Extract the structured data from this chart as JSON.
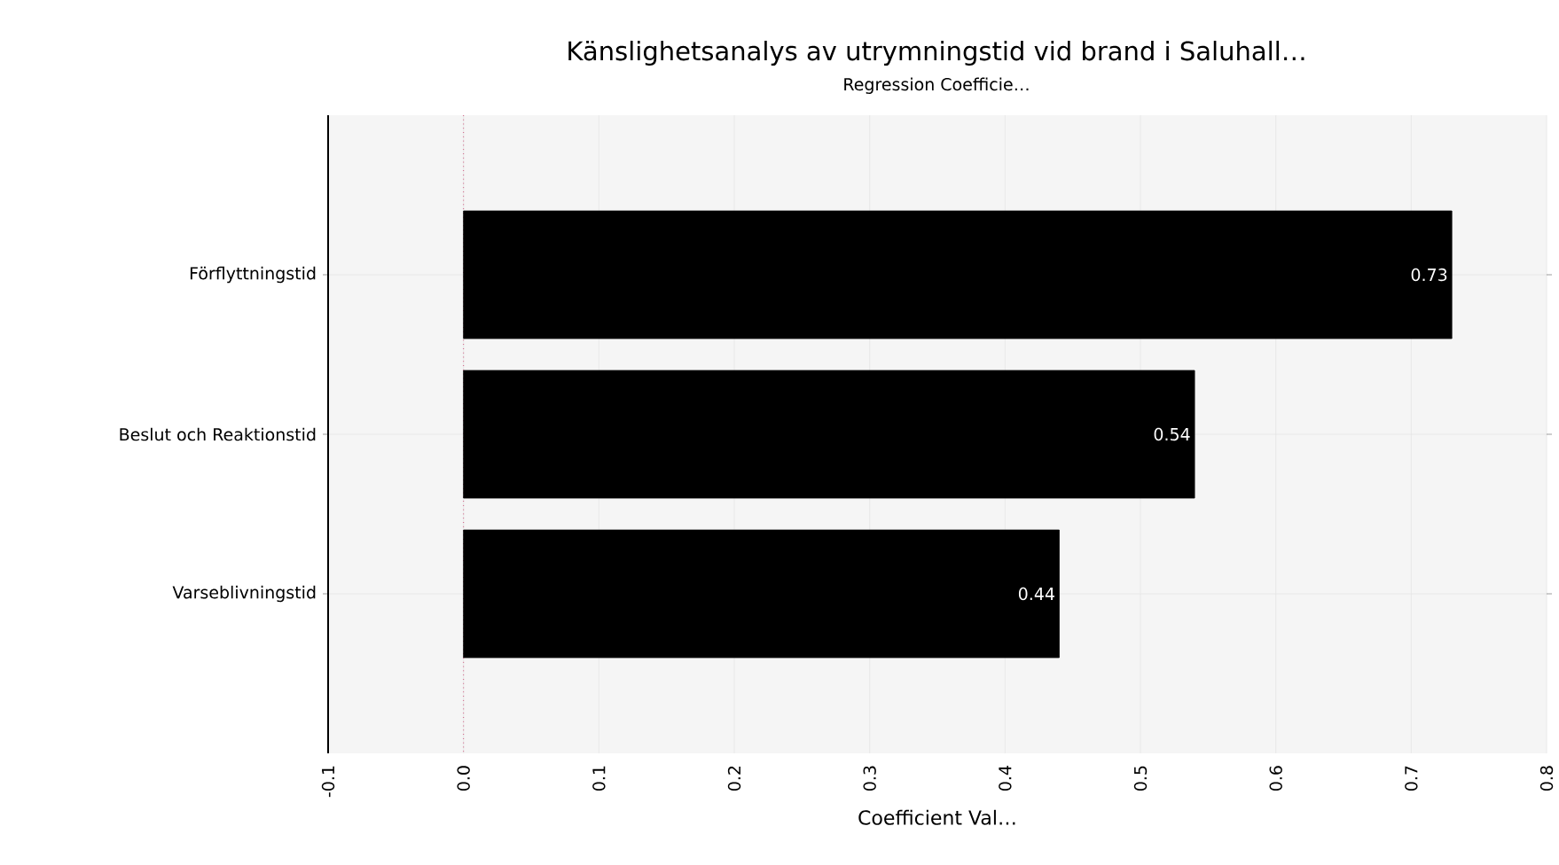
{
  "chart_data": {
    "type": "bar",
    "orientation": "horizontal",
    "title": "Känslighetsanalys av utrymningstid vid brand i Saluhall…",
    "subtitle": "Regression Coefficie…",
    "xlabel": "Coefficient Val…",
    "categories": [
      "Förflyttningstid",
      "Beslut och Reaktionstid",
      "Varseblivningstid"
    ],
    "values": [
      0.73,
      0.54,
      0.44
    ],
    "color": "#000000",
    "data_labels": true,
    "xlim": [
      -0.1,
      0.8
    ],
    "xticks": [
      -0.1,
      {
        "value": 0,
        "label": "0.0"
      },
      0.1,
      0.2,
      0.3,
      0.4,
      0.5,
      0.6,
      0.7,
      0.8
    ],
    "grid": true,
    "ref_lines": [
      {
        "axis": "x",
        "value": 0,
        "color": "#c00040",
        "line_style": "dotted"
      }
    ]
  }
}
